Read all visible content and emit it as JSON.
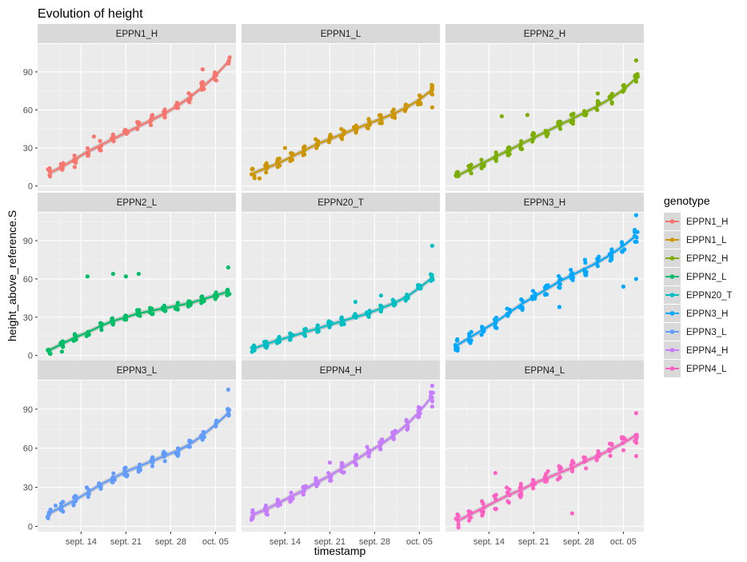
{
  "chart_data": {
    "type": "scatter",
    "title": "Evolution of height",
    "xlabel": "timestamp",
    "ylabel": "height_above_reference.S",
    "x_ticks": [
      "sept. 14",
      "sept. 21",
      "sept. 28",
      "oct. 05"
    ],
    "x_range": [
      "2019-09-08",
      "2019-10-06"
    ],
    "rows": [
      {
        "ylim": [
          -4,
          112
        ],
        "y_ticks": [
          "0",
          "30",
          "60",
          "90"
        ]
      },
      {
        "ylim": [
          -4,
          112
        ],
        "y_ticks": [
          "0",
          "30",
          "60",
          "90"
        ]
      },
      {
        "ylim": [
          -4,
          112
        ],
        "y_ticks": [
          "0",
          "30",
          "60",
          "90"
        ]
      }
    ],
    "legend": {
      "title": "genotype",
      "position": "right"
    },
    "smooth": "loess trend line with grey confidence band per panel",
    "grid": true,
    "panels": [
      {
        "name": "EPPN1_H",
        "color": "#F8766D",
        "x": [
          9,
          11,
          13,
          15,
          17,
          19,
          21,
          23,
          25,
          27,
          29,
          31,
          33,
          35,
          37
        ],
        "values": [
          10,
          15,
          21,
          27,
          32,
          37,
          42,
          47,
          52,
          57,
          63,
          70,
          78,
          87,
          98
        ],
        "noise": 4,
        "outliers": [
          [
            13,
            15
          ],
          [
            16,
            39
          ],
          [
            33,
            92
          ]
        ]
      },
      {
        "name": "EPPN1_L",
        "color": "#CD9600",
        "x": [
          9,
          11,
          13,
          15,
          17,
          19,
          21,
          23,
          25,
          27,
          29,
          31,
          33,
          35,
          37
        ],
        "values": [
          10,
          14,
          18,
          23,
          28,
          33,
          37,
          41,
          45,
          49,
          53,
          57,
          62,
          68,
          76
        ],
        "noise": 4,
        "outliers": [
          [
            10,
            6
          ],
          [
            14,
            30
          ],
          [
            37,
            62
          ]
        ]
      },
      {
        "name": "EPPN2_H",
        "color": "#7CAE00",
        "x": [
          9,
          11,
          13,
          15,
          17,
          19,
          21,
          23,
          25,
          27,
          29,
          31,
          33,
          35,
          37
        ],
        "values": [
          8,
          13,
          18,
          23,
          28,
          33,
          38,
          43,
          48,
          53,
          58,
          63,
          69,
          76,
          85
        ],
        "noise": 4,
        "outliers": [
          [
            16,
            55
          ],
          [
            20,
            56
          ],
          [
            31,
            73
          ],
          [
            37,
            99
          ]
        ]
      },
      {
        "name": "EPPN2_L",
        "color": "#00BE67",
        "x": [
          9,
          11,
          13,
          15,
          17,
          19,
          21,
          23,
          25,
          27,
          29,
          31,
          33,
          35,
          37
        ],
        "values": [
          4,
          9,
          14,
          18,
          23,
          27,
          30,
          33,
          35,
          37,
          39,
          41,
          44,
          47,
          50
        ],
        "noise": 3,
        "outliers": [
          [
            15,
            62
          ],
          [
            19,
            64
          ],
          [
            21,
            62
          ],
          [
            23,
            64
          ],
          [
            11,
            3
          ],
          [
            37,
            69
          ]
        ]
      },
      {
        "name": "EPPN20_T",
        "color": "#00BFC4",
        "x": [
          9,
          11,
          13,
          15,
          17,
          19,
          21,
          23,
          25,
          27,
          29,
          31,
          33,
          35,
          37
        ],
        "values": [
          5,
          9,
          12,
          15,
          18,
          21,
          24,
          27,
          30,
          33,
          37,
          41,
          46,
          53,
          61
        ],
        "noise": 3,
        "outliers": [
          [
            37,
            86
          ],
          [
            25,
            42
          ],
          [
            29,
            47
          ]
        ]
      },
      {
        "name": "EPPN3_H",
        "color": "#00A9FF",
        "x": [
          9,
          11,
          13,
          15,
          17,
          19,
          21,
          23,
          25,
          27,
          29,
          31,
          33,
          35,
          37
        ],
        "values": [
          8,
          14,
          20,
          26,
          33,
          40,
          46,
          52,
          58,
          63,
          68,
          73,
          79,
          86,
          94
        ],
        "noise": 5,
        "outliers": [
          [
            37,
            60
          ],
          [
            35,
            54
          ],
          [
            25,
            38
          ],
          [
            29,
            75
          ],
          [
            37,
            110
          ]
        ]
      },
      {
        "name": "EPPN3_L",
        "color": "#619CFF",
        "x": [
          9,
          11,
          13,
          15,
          17,
          19,
          21,
          23,
          25,
          27,
          29,
          31,
          33,
          35,
          37
        ],
        "values": [
          10,
          15,
          20,
          26,
          32,
          37,
          42,
          46,
          50,
          54,
          58,
          63,
          70,
          78,
          87
        ],
        "noise": 4,
        "outliers": [
          [
            10,
            16
          ],
          [
            21,
            40
          ],
          [
            37,
            105
          ]
        ]
      },
      {
        "name": "EPPN4_H",
        "color": "#C77CFF",
        "x": [
          9,
          11,
          13,
          15,
          17,
          19,
          21,
          23,
          25,
          27,
          29,
          31,
          33,
          35,
          37
        ],
        "values": [
          9,
          13,
          18,
          23,
          28,
          34,
          39,
          45,
          51,
          57,
          63,
          70,
          78,
          88,
          100
        ],
        "noise": 4,
        "outliers": [
          [
            11,
            16
          ],
          [
            21,
            49
          ],
          [
            37,
            108
          ],
          [
            37,
            92
          ]
        ]
      },
      {
        "name": "EPPN4_L",
        "color": "#FF61C3",
        "x": [
          9,
          11,
          13,
          15,
          17,
          19,
          21,
          23,
          25,
          27,
          29,
          31,
          33,
          35,
          37
        ],
        "values": [
          4,
          9,
          14,
          19,
          24,
          28,
          33,
          37,
          41,
          45,
          50,
          54,
          59,
          64,
          70
        ],
        "noise": 6,
        "outliers": [
          [
            37,
            87
          ],
          [
            37,
            54
          ],
          [
            15,
            41
          ],
          [
            27,
            10
          ]
        ]
      }
    ]
  }
}
